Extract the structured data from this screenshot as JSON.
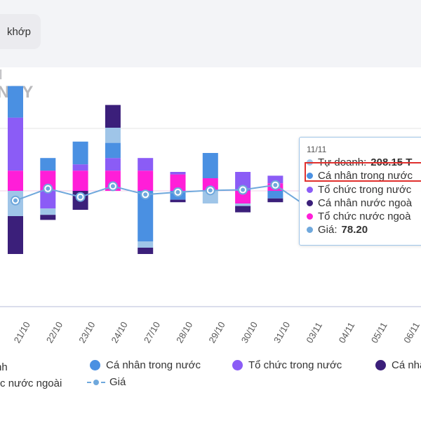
{
  "filter": {
    "label": "khớp"
  },
  "title": {
    "line1": "I",
    "line2": "NEY"
  },
  "colors": {
    "tu_doanh": "#9fc5e8",
    "ca_nhan_trong_nuoc": "#4a90e2",
    "to_chuc_trong_nuoc": "#8b5cf6",
    "ca_nhan_nuoc_ngoai": "#3b1f7a",
    "to_chuc_nuoc_ngoai": "#ff1ed8",
    "gia": "#6fa8dc"
  },
  "legend": [
    {
      "name": "nh",
      "color": "#9fc5e8"
    },
    {
      "name": "Cá nhân trong nước",
      "color": "#4a90e2"
    },
    {
      "name": "Tổ chức trong nước",
      "color": "#8b5cf6"
    },
    {
      "name": "Cá nhâ",
      "color": "#3b1f7a"
    },
    {
      "name": "ức nước ngoài",
      "color": "#ff1ed8"
    },
    {
      "name": "Giá",
      "color": "#6fa8dc"
    }
  ],
  "tooltip": {
    "date": "11/11",
    "rows": [
      {
        "label": "Tự doanh:",
        "value": "208.15 T",
        "color": "#9fc5e8"
      },
      {
        "label": "Cá nhân trong nước",
        "value": "",
        "color": "#4a90e2"
      },
      {
        "label": "Tổ chức trong nước",
        "value": "",
        "color": "#8b5cf6"
      },
      {
        "label": "Cá nhân nước ngoà",
        "value": "",
        "color": "#3b1f7a"
      },
      {
        "label": "Tổ chức nước ngoà",
        "value": "",
        "color": "#ff1ed8"
      },
      {
        "label": "Giá:",
        "value": "78.20",
        "color": "#6fa8dc"
      }
    ]
  },
  "chart_data": {
    "type": "bar",
    "categories": [
      "21/10",
      "22/10",
      "23/10",
      "24/10",
      "27/10",
      "28/10",
      "29/10",
      "30/10",
      "31/10",
      "03/11",
      "04/11",
      "05/11",
      "06/11"
    ],
    "series": [
      {
        "name": "Tự doanh",
        "values": [
          -20,
          -5,
          0,
          12,
          -5,
          0,
          -10,
          -2,
          0,
          0,
          0,
          0,
          0
        ]
      },
      {
        "name": "Cá nhân trong nước",
        "values": [
          25,
          10,
          18,
          12,
          -40,
          -7,
          20,
          0,
          -6,
          0,
          0,
          0,
          0
        ]
      },
      {
        "name": "Tổ chức trong nước",
        "values": [
          42,
          -14,
          5,
          10,
          10,
          2,
          0,
          15,
          6,
          0,
          0,
          0,
          0
        ]
      },
      {
        "name": "Cá nhân nước ngoài",
        "values": [
          -30,
          -4,
          -15,
          18,
          -5,
          -2,
          0,
          -5,
          -3,
          0,
          0,
          0,
          0
        ]
      },
      {
        "name": "Tổ chức nước ngoài",
        "values": [
          16,
          16,
          16,
          16,
          16,
          13,
          10,
          -10,
          6,
          0,
          0,
          0,
          0
        ]
      },
      {
        "name": "Giá",
        "values": [
          77.62,
          77.82,
          77.68,
          77.86,
          77.72,
          77.76,
          77.79,
          77.8,
          77.88,
          77.51,
          null,
          null,
          null
        ]
      }
    ]
  }
}
